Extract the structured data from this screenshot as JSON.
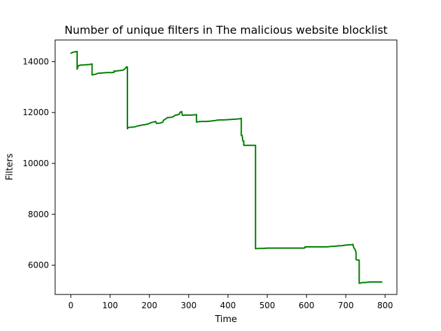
{
  "chart_data": {
    "type": "line",
    "title": "Number of unique filters in The malicious website blocklist",
    "xlabel": "Time",
    "ylabel": "Filters",
    "xlim": [
      -40,
      830
    ],
    "ylim": [
      4850,
      14850
    ],
    "xticks": [
      0,
      100,
      200,
      300,
      400,
      500,
      600,
      700,
      800
    ],
    "yticks": [
      6000,
      8000,
      10000,
      12000,
      14000
    ],
    "grid": false,
    "colors": {
      "line": "#008000",
      "axes": "#000000",
      "background": "#ffffff"
    },
    "series": [
      {
        "x": [
          0,
          6,
          12,
          16,
          16,
          19,
          22,
          24,
          26,
          26,
          30,
          34,
          38,
          44,
          48,
          50,
          54,
          54,
          58,
          62,
          66,
          68,
          70,
          74,
          78,
          82,
          86,
          90,
          96,
          104,
          110,
          110,
          116,
          120,
          126,
          132,
          136,
          138,
          140,
          142,
          144,
          144,
          146,
          150,
          160,
          164,
          170,
          176,
          182,
          188,
          196,
          200,
          204,
          208,
          212,
          216,
          218,
          222,
          226,
          230,
          234,
          236,
          240,
          244,
          246,
          248,
          254,
          258,
          262,
          266,
          270,
          274,
          276,
          278,
          280,
          282,
          284,
          286,
          290,
          296,
          302,
          308,
          314,
          318,
          320,
          320,
          326,
          334,
          344,
          354,
          364,
          370,
          372,
          380,
          390,
          400,
          410,
          420,
          428,
          432,
          434,
          434,
          436,
          438,
          440,
          440,
          446,
          452,
          458,
          464,
          470,
          470,
          478,
          490,
          500,
          510,
          520,
          530,
          540,
          550,
          560,
          570,
          580,
          590,
          596,
          596,
          610,
          620,
          630,
          640,
          650,
          660,
          662,
          670,
          680,
          690,
          700,
          710,
          716,
          718,
          720,
          722,
          724,
          726,
          726,
          728,
          732,
          734,
          734,
          738,
          742,
          744,
          748,
          756,
          764,
          772,
          782,
          792
        ],
        "y": [
          14330,
          14370,
          14390,
          14400,
          13700,
          13840,
          13850,
          13870,
          13860,
          13860,
          13870,
          13870,
          13880,
          13880,
          13890,
          13890,
          13910,
          13480,
          13490,
          13500,
          13520,
          13540,
          13540,
          13550,
          13550,
          13560,
          13560,
          13570,
          13570,
          13570,
          13580,
          13630,
          13630,
          13640,
          13650,
          13660,
          13700,
          13720,
          13760,
          13800,
          13780,
          11360,
          11410,
          11420,
          11430,
          11440,
          11470,
          11490,
          11510,
          11520,
          11550,
          11570,
          11600,
          11620,
          11630,
          11650,
          11570,
          11580,
          11580,
          11600,
          11620,
          11700,
          11730,
          11780,
          11800,
          11800,
          11810,
          11820,
          11850,
          11900,
          11900,
          11930,
          11930,
          12010,
          12020,
          12040,
          11890,
          11890,
          11900,
          11900,
          11900,
          11900,
          11910,
          11910,
          11920,
          11620,
          11640,
          11650,
          11650,
          11660,
          11680,
          11690,
          11700,
          11710,
          11710,
          11720,
          11730,
          11740,
          11750,
          11760,
          11770,
          11100,
          11100,
          10880,
          10880,
          10710,
          10710,
          10710,
          10710,
          10710,
          10710,
          6650,
          6660,
          6660,
          6670,
          6670,
          6670,
          6670,
          6670,
          6670,
          6670,
          6670,
          6670,
          6670,
          6680,
          6720,
          6720,
          6720,
          6720,
          6720,
          6720,
          6730,
          6740,
          6740,
          6760,
          6770,
          6790,
          6800,
          6810,
          6820,
          6700,
          6650,
          6600,
          6500,
          6220,
          6210,
          6200,
          6200,
          5290,
          5300,
          5320,
          5320,
          5320,
          5330,
          5340,
          5340,
          5340,
          5340
        ]
      }
    ]
  }
}
